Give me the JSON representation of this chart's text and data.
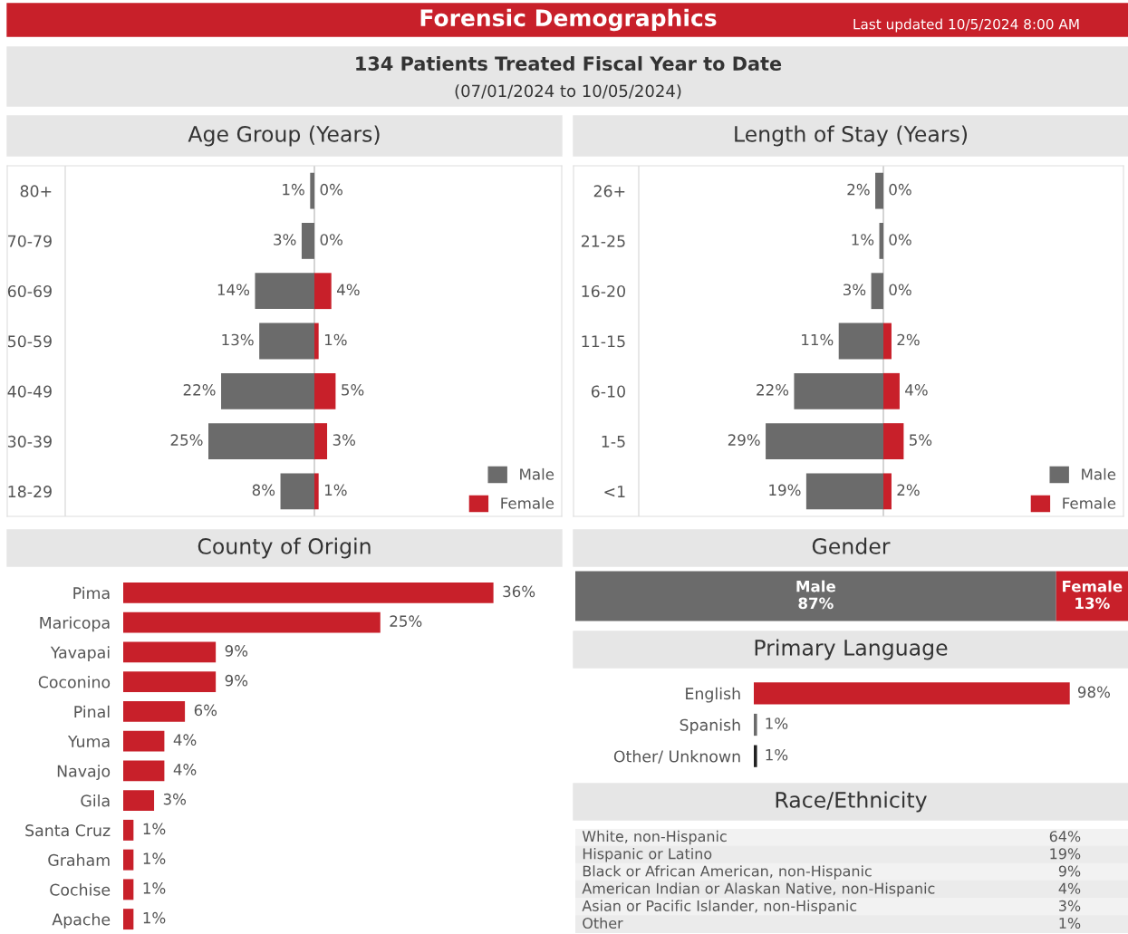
{
  "chart_data": [
    {
      "type": "other",
      "title": "Forensic Demographics",
      "subtitle": "134 Patients Treated Fiscal Year to Date",
      "annotations": [
        "Last updated 10/5/2024 8:00 AM",
        "(07/01/2024 to 10/05/2024)"
      ]
    },
    {
      "type": "bar",
      "orientation": "horizontal",
      "title": "Age Group (Years)",
      "categories": [
        "80+",
        "70-79",
        "60-69",
        "50-59",
        "40-49",
        "30-39",
        "18-29"
      ],
      "legend": "bottom right",
      "series": [
        {
          "name": "Male",
          "color": "#6b6b6b",
          "values": [
            1,
            3,
            14,
            13,
            22,
            25,
            8
          ],
          "value_labels": [
            "1%",
            "3%",
            "14%",
            "13%",
            "22%",
            "25%",
            "8%"
          ]
        }
      ]
    },
    {
      "type": "bar",
      "orientation": "horizontal",
      "categories": [
        null,
        null,
        null,
        null,
        null,
        null,
        null
      ],
      "legend": "bottom right",
      "series": [
        {
          "name": "Female",
          "color": "#c8202a",
          "values": [
            0,
            0,
            4,
            1,
            5,
            3,
            1
          ],
          "value_labels": [
            "0%",
            "0%",
            "4%",
            "1%",
            "5%",
            "3%",
            "1%"
          ]
        }
      ]
    },
    {
      "type": "bar",
      "orientation": "horizontal",
      "title": "Length of Stay (Years)",
      "categories": [
        "26+",
        "21-25",
        "16-20",
        "11-15",
        "6-10",
        "1-5",
        "<1"
      ],
      "legend": "bottom right",
      "series": [
        {
          "name": "Male",
          "color": "#6b6b6b",
          "values": [
            2,
            1,
            3,
            11,
            22,
            29,
            19
          ],
          "value_labels": [
            "2%",
            "1%",
            "3%",
            "11%",
            "22%",
            "29%",
            "19%"
          ]
        }
      ]
    },
    {
      "type": "bar",
      "orientation": "horizontal",
      "categories": [
        null,
        null,
        null,
        null,
        null,
        null,
        null
      ],
      "legend": "bottom right",
      "series": [
        {
          "name": "Female",
          "color": "#c8202a",
          "values": [
            0,
            0,
            0,
            2,
            4,
            5,
            2
          ],
          "value_labels": [
            "0%",
            "0%",
            "0%",
            "2%",
            "4%",
            "5%",
            "2%"
          ]
        }
      ]
    },
    {
      "type": "bar",
      "orientation": "horizontal",
      "title": "County of Origin",
      "categories": [
        "Pima",
        "Maricopa",
        "Yavapai",
        "Coconino",
        "Pinal",
        "Yuma",
        "Navajo",
        "Gila",
        "Santa Cruz",
        "Graham",
        "Cochise",
        "Apache"
      ],
      "series": [
        {
          "color": "#c8202a",
          "values": [
            36,
            25,
            9,
            9,
            6,
            4,
            4,
            3,
            1,
            1,
            1,
            1
          ],
          "value_labels": [
            "36%",
            "25%",
            "9%",
            "9%",
            "6%",
            "4%",
            "4%",
            "3%",
            "1%",
            "1%",
            "1%",
            "1%"
          ]
        }
      ]
    },
    {
      "type": "bar",
      "orientation": "horizontal",
      "stacked": true,
      "title": "Gender",
      "categories": [
        null
      ],
      "series": [
        {
          "name": "Male",
          "color": "#6b6b6b",
          "values": [
            87
          ],
          "value_labels": [
            "87%"
          ]
        },
        {
          "name": "Female",
          "color": "#c8202a",
          "values": [
            13
          ],
          "value_labels": [
            "13%"
          ]
        }
      ]
    },
    {
      "type": "bar",
      "orientation": "horizontal",
      "title": "Primary Language",
      "categories": [
        "English",
        "Spanish",
        "Other/ Unknown"
      ],
      "series": [
        {
          "colors": [
            "#c8202a",
            "#6b6b6b",
            "#222222"
          ],
          "values": [
            98,
            1,
            1
          ],
          "value_labels": [
            "98%",
            "1%",
            "1%"
          ]
        }
      ]
    },
    {
      "type": "other",
      "title": "Race/Ethnicity",
      "categories": [
        "White, non-Hispanic",
        "Hispanic or Latino",
        "Black or African American, non-Hispanic",
        "American Indian or Alaskan Native, non-Hispanic",
        "Asian or Pacific Islander, non-Hispanic",
        "Other"
      ],
      "value_labels": [
        "64%",
        "19%",
        "9%",
        "4%",
        "3%",
        "1%"
      ]
    }
  ]
}
